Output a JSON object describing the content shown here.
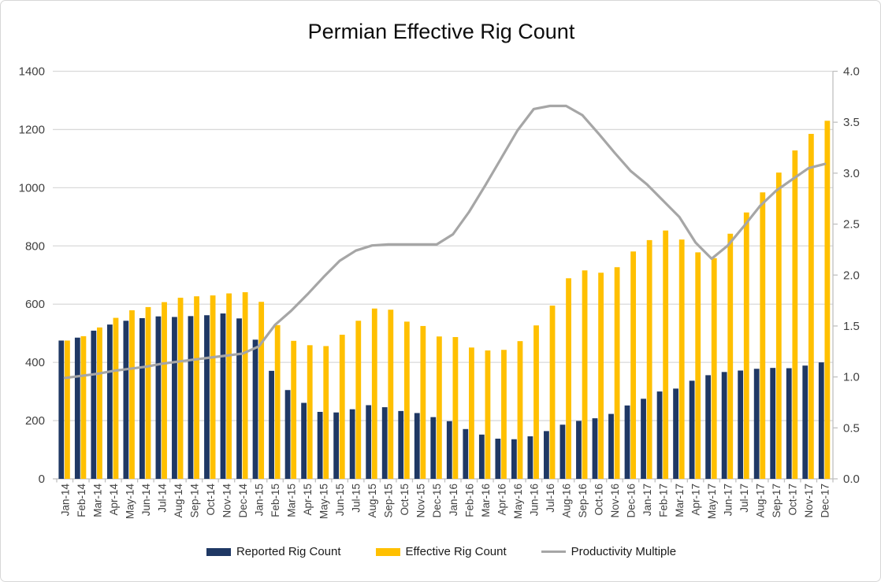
{
  "window": {
    "background": "#ffffff",
    "border_color": "#d7d7d7"
  },
  "chart_data": {
    "type": "bar",
    "subtype": "bar+line-combo",
    "title": "Permian Effective Rig Count",
    "grid": true,
    "legend_position": "bottom",
    "colors": {
      "reported_bar": "#1f3864",
      "effective_bar": "#ffc000",
      "productivity_line": "#a6a6a6",
      "gridline": "#d9d9d9",
      "axis_line": "#bfbfbf",
      "axis_text": "#404040",
      "title_text": "#0d0d0d"
    },
    "categories": [
      "Jan-14",
      "Feb-14",
      "Mar-14",
      "Apr-14",
      "May-14",
      "Jun-14",
      "Jul-14",
      "Aug-14",
      "Sep-14",
      "Oct-14",
      "Nov-14",
      "Dec-14",
      "Jan-15",
      "Feb-15",
      "Mar-15",
      "Apr-15",
      "May-15",
      "Jun-15",
      "Jul-15",
      "Aug-15",
      "Sep-15",
      "Oct-15",
      "Nov-15",
      "Dec-15",
      "Jan-16",
      "Feb-16",
      "Mar-16",
      "Apr-16",
      "May-16",
      "Jun-16",
      "Jul-16",
      "Aug-16",
      "Sep-16",
      "Oct-16",
      "Nov-16",
      "Dec-16",
      "Jan-17",
      "Feb-17",
      "Mar-17",
      "Apr-17",
      "May-17",
      "Jun-17",
      "Jul-17",
      "Aug-17",
      "Sep-17",
      "Oct-17",
      "Nov-17",
      "Dec-17"
    ],
    "series": [
      {
        "name": "Reported Rig Count",
        "type": "bar",
        "axis": "left",
        "color": "#1f3864",
        "values": [
          475,
          485,
          509,
          530,
          543,
          552,
          558,
          556,
          559,
          562,
          568,
          551,
          478,
          371,
          305,
          261,
          230,
          228,
          239,
          253,
          246,
          233,
          226,
          212,
          198,
          171,
          152,
          138,
          136,
          146,
          164,
          186,
          199,
          208,
          223,
          252,
          275,
          300,
          310,
          337,
          356,
          367,
          372,
          378,
          381,
          380,
          389,
          400
        ]
      },
      {
        "name": "Effective Rig Count",
        "type": "bar",
        "axis": "left",
        "color": "#ffc000",
        "values": [
          475,
          490,
          520,
          553,
          579,
          590,
          607,
          622,
          627,
          630,
          637,
          641,
          608,
          528,
          474,
          459,
          456,
          495,
          543,
          585,
          581,
          540,
          525,
          489,
          487,
          451,
          441,
          443,
          473,
          527,
          595,
          689,
          716,
          708,
          727,
          781,
          820,
          853,
          822,
          778,
          758,
          842,
          915,
          984,
          1052,
          1128,
          1185,
          1230
        ]
      },
      {
        "name": "Productivity Multiple",
        "type": "line",
        "axis": "right",
        "color": "#a6a6a6",
        "values": [
          0.99,
          1.01,
          1.03,
          1.06,
          1.08,
          1.1,
          1.13,
          1.15,
          1.17,
          1.19,
          1.21,
          1.23,
          1.3,
          1.51,
          1.65,
          1.81,
          1.98,
          2.14,
          2.24,
          2.29,
          2.3,
          2.3,
          2.3,
          2.3,
          2.4,
          2.62,
          2.88,
          3.15,
          3.42,
          3.63,
          3.66,
          3.66,
          3.57,
          3.39,
          3.2,
          3.02,
          2.89,
          2.73,
          2.57,
          2.32,
          2.16,
          2.29,
          2.48,
          2.68,
          2.83,
          2.94,
          3.05,
          3.09
        ]
      }
    ],
    "left_axis": {
      "min": 0,
      "max": 1400,
      "step": 200,
      "labels": [
        "0",
        "200",
        "400",
        "600",
        "800",
        "1000",
        "1200",
        "1400"
      ]
    },
    "right_axis": {
      "min": 0,
      "max": 4.0,
      "step": 0.5,
      "labels": [
        "0.0",
        "0.5",
        "1.0",
        "1.5",
        "2.0",
        "2.5",
        "3.0",
        "3.5",
        "4.0"
      ]
    }
  }
}
